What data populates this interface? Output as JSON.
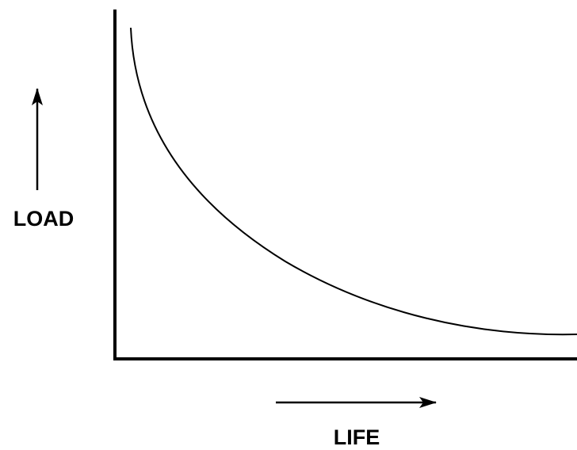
{
  "y_axis_label": "LOAD",
  "x_axis_label": "LIFE"
}
